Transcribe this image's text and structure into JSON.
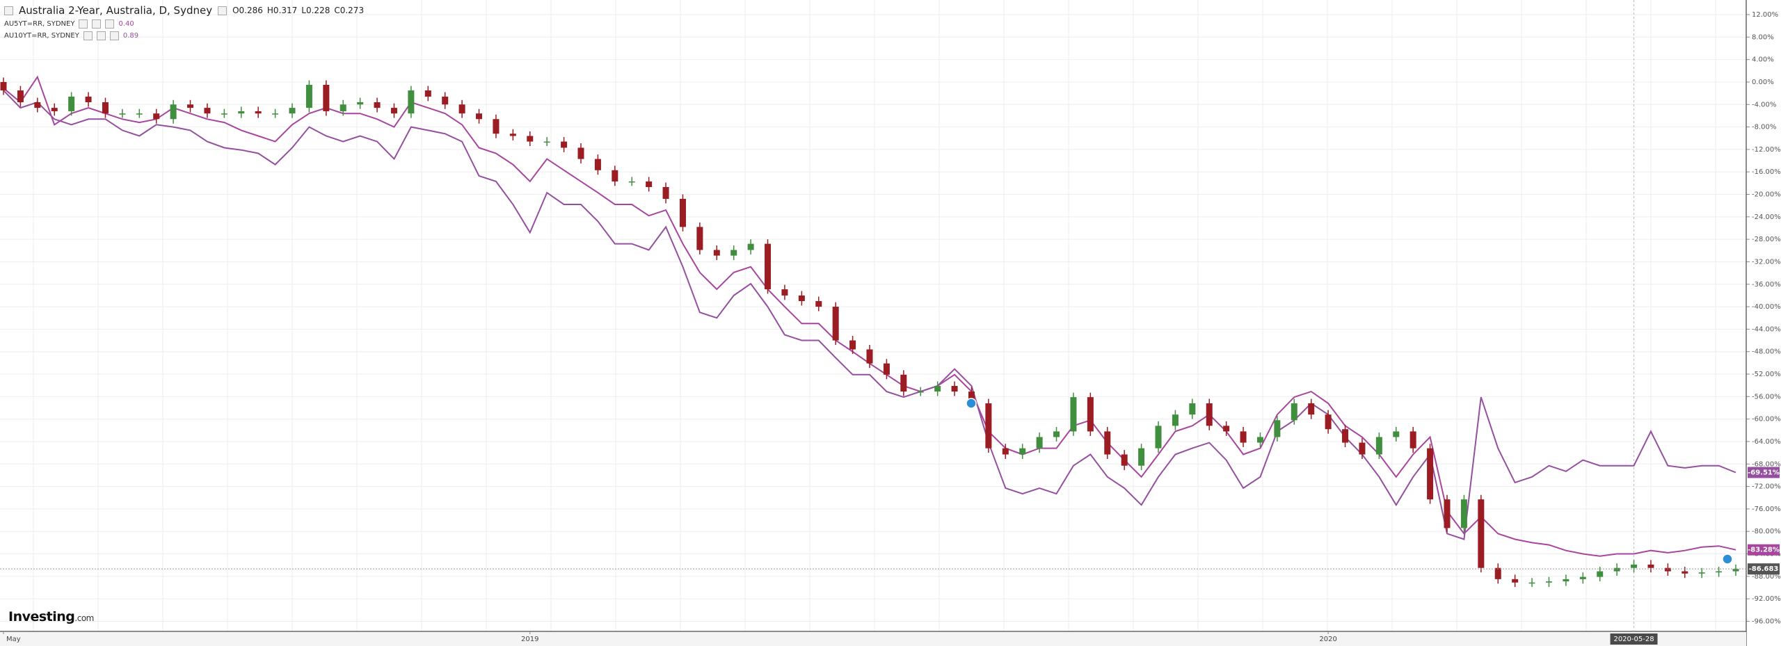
{
  "header": {
    "title": "Australia 2-Year, Australia, D, Sydney",
    "ohlc_labels": [
      "O0.286",
      "H0.317",
      "L0.228",
      "C0.273"
    ]
  },
  "logo": "Investing",
  "logo_suffix": ".com",
  "chart_data": {
    "type": "candlestick",
    "grid": true,
    "y_axis_side": "right",
    "crosshair_index": 96,
    "ylim": [
      -97.8,
      14.6
    ],
    "yticks": [
      {
        "value": 12,
        "label": "12.00%"
      },
      {
        "value": 8,
        "label": "8.00%"
      },
      {
        "value": 4,
        "label": "4.00%"
      },
      {
        "value": 0,
        "label": "0.00%"
      },
      {
        "value": -4,
        "label": "-4.00%"
      },
      {
        "value": -8,
        "label": "-8.00%"
      },
      {
        "value": -12,
        "label": "-12.00%"
      },
      {
        "value": -16,
        "label": "-16.00%"
      },
      {
        "value": -20,
        "label": "-20.00%"
      },
      {
        "value": -24,
        "label": "-24.00%"
      },
      {
        "value": -28,
        "label": "-28.00%"
      },
      {
        "value": -32,
        "label": "-32.00%"
      },
      {
        "value": -36,
        "label": "-36.00%"
      },
      {
        "value": -40,
        "label": "-40.00%"
      },
      {
        "value": -44,
        "label": "-44.00%"
      },
      {
        "value": -48,
        "label": "-48.00%"
      },
      {
        "value": -52,
        "label": "-52.00%"
      },
      {
        "value": -56,
        "label": "-56.00%"
      },
      {
        "value": -60,
        "label": "-60.00%"
      },
      {
        "value": -64,
        "label": "-64.00%"
      },
      {
        "value": -68,
        "label": "-68.00%"
      },
      {
        "value": -72,
        "label": "-72.00%"
      },
      {
        "value": -76,
        "label": "-76.00%"
      },
      {
        "value": -80,
        "label": "-80.00%"
      },
      {
        "value": -84,
        "label": "-84.00%"
      },
      {
        "value": -88,
        "label": "-88.00%"
      },
      {
        "value": -92,
        "label": "-92.00%"
      },
      {
        "value": -96,
        "label": "-96.00%"
      }
    ],
    "categories": [
      "May",
      null,
      null,
      null,
      null,
      null,
      null,
      null,
      null,
      null,
      null,
      null,
      null,
      null,
      null,
      null,
      null,
      null,
      null,
      null,
      null,
      null,
      null,
      null,
      null,
      null,
      null,
      null,
      null,
      null,
      null,
      "2019",
      null,
      null,
      null,
      null,
      null,
      null,
      null,
      null,
      null,
      null,
      null,
      null,
      null,
      null,
      null,
      null,
      null,
      null,
      null,
      null,
      null,
      null,
      null,
      null,
      null,
      null,
      null,
      null,
      null,
      null,
      null,
      null,
      null,
      null,
      null,
      null,
      null,
      null,
      null,
      null,
      null,
      null,
      null,
      null,
      null,
      null,
      "2020",
      null,
      null,
      null,
      null,
      null,
      null,
      null,
      null,
      null,
      null,
      null,
      null,
      null,
      null,
      null,
      null,
      null,
      "2020-05-28",
      null,
      null,
      null,
      null,
      null,
      null
    ],
    "candles": {
      "up_color": "#3f8f3f",
      "down_color": "#9b1c22",
      "last_label": "-86.683",
      "open": [
        0,
        -1.5,
        -3.6,
        -4.6,
        -5.2,
        -2.6,
        -3.6,
        -5.6,
        -5.6,
        -5.6,
        -6.6,
        -4.0,
        -4.6,
        -5.6,
        -5.6,
        -5.2,
        -5.6,
        -5.6,
        -4.6,
        -0.5,
        -5.2,
        -4.0,
        -3.6,
        -4.6,
        -5.6,
        -1.5,
        -2.6,
        -4.0,
        -5.6,
        -6.6,
        -9.2,
        -9.6,
        -10.6,
        -10.6,
        -11.7,
        -13.7,
        -15.7,
        -17.7,
        -17.7,
        -18.7,
        -20.8,
        -25.8,
        -29.9,
        -30.9,
        -29.9,
        -28.8,
        -36.9,
        -38.0,
        -39.0,
        -40.0,
        -46.0,
        -47.6,
        -50.1,
        -52.1,
        -55.1,
        -55.1,
        -54.1,
        -55.1,
        -57.2,
        -65.2,
        -66.3,
        -65.2,
        -63.2,
        -62.2,
        -56.1,
        -62.2,
        -66.3,
        -68.3,
        -65.2,
        -61.2,
        -59.2,
        -57.2,
        -61.2,
        -62.2,
        -64.2,
        -63.2,
        -60.2,
        -57.2,
        -59.2,
        -61.8,
        -64.2,
        -66.3,
        -63.2,
        -62.2,
        -65.2,
        -74.3,
        -79.4,
        -74.3,
        -86.5,
        -88.5,
        -89.1,
        -89.1,
        -88.9,
        -88.5,
        -88.1,
        -87.1,
        -86.5,
        -85.9,
        -86.5,
        -87.1,
        -87.5,
        -87.3,
        -87.1
      ],
      "high": [
        0.8,
        -0.7,
        -2.8,
        -3.8,
        -1.8,
        -1.8,
        -2.8,
        -4.8,
        -4.8,
        -4.8,
        -3.2,
        -3.2,
        -3.8,
        -4.8,
        -4.4,
        -4.4,
        -4.8,
        -3.8,
        0.3,
        0.3,
        -3.2,
        -2.8,
        -2.8,
        -3.8,
        -0.7,
        -0.7,
        -1.8,
        -3.2,
        -4.8,
        -5.8,
        -8.4,
        -8.8,
        -9.8,
        -9.8,
        -10.9,
        -12.9,
        -14.9,
        -16.9,
        -16.9,
        -17.9,
        -20.0,
        -25.0,
        -29.1,
        -29.1,
        -28.0,
        -28.0,
        -36.1,
        -37.2,
        -38.2,
        -39.2,
        -45.2,
        -46.8,
        -49.3,
        -51.3,
        -54.3,
        -53.3,
        -53.3,
        -54.3,
        -56.4,
        -64.4,
        -64.4,
        -62.4,
        -61.4,
        -55.3,
        -55.3,
        -61.4,
        -65.5,
        -64.4,
        -60.4,
        -58.4,
        -56.4,
        -56.4,
        -60.4,
        -61.4,
        -62.4,
        -59.4,
        -56.4,
        -56.4,
        -58.4,
        -61.0,
        -63.4,
        -62.4,
        -61.4,
        -61.4,
        -64.4,
        -73.5,
        -73.5,
        -73.5,
        -85.7,
        -87.7,
        -88.3,
        -88.1,
        -87.7,
        -87.3,
        -86.3,
        -85.7,
        -85.1,
        -85.1,
        -85.7,
        -86.3,
        -86.5,
        -86.3,
        -85.9
      ],
      "low": [
        -2.3,
        -4.4,
        -5.4,
        -6.0,
        -6.0,
        -4.4,
        -6.4,
        -6.4,
        -6.4,
        -7.4,
        -7.4,
        -5.4,
        -6.4,
        -6.4,
        -6.4,
        -6.4,
        -6.4,
        -6.4,
        -5.4,
        -6.0,
        -6.0,
        -4.8,
        -5.4,
        -6.4,
        -6.4,
        -3.4,
        -4.8,
        -6.4,
        -7.4,
        -10.0,
        -10.4,
        -11.4,
        -11.4,
        -12.5,
        -14.5,
        -16.5,
        -18.5,
        -18.5,
        -19.5,
        -21.6,
        -26.6,
        -30.7,
        -31.7,
        -31.7,
        -30.7,
        -37.7,
        -38.8,
        -39.8,
        -40.8,
        -46.8,
        -48.4,
        -50.9,
        -52.9,
        -55.9,
        -55.9,
        -55.9,
        -55.9,
        -58.0,
        -66.0,
        -67.1,
        -67.1,
        -66.0,
        -64.0,
        -63.0,
        -63.0,
        -67.1,
        -69.1,
        -69.1,
        -66.0,
        -62.0,
        -60.0,
        -62.0,
        -63.0,
        -65.0,
        -65.0,
        -64.0,
        -61.0,
        -60.0,
        -62.6,
        -65.0,
        -67.1,
        -67.1,
        -64.0,
        -66.0,
        -75.1,
        -80.2,
        -80.2,
        -87.3,
        -89.3,
        -89.9,
        -89.9,
        -89.9,
        -89.7,
        -89.3,
        -88.9,
        -87.9,
        -87.3,
        -87.3,
        -87.9,
        -88.3,
        -88.3,
        -88.1,
        -87.9
      ],
      "close": [
        -1.5,
        -3.6,
        -4.6,
        -5.2,
        -2.6,
        -3.6,
        -5.6,
        -5.6,
        -5.6,
        -6.6,
        -4.0,
        -4.6,
        -5.6,
        -5.6,
        -5.2,
        -5.6,
        -5.6,
        -4.6,
        -0.5,
        -5.2,
        -4.0,
        -3.6,
        -4.6,
        -5.6,
        -1.5,
        -2.6,
        -4.0,
        -5.6,
        -6.6,
        -9.2,
        -9.6,
        -10.6,
        -10.6,
        -11.7,
        -13.7,
        -15.7,
        -17.7,
        -17.7,
        -18.7,
        -20.8,
        -25.8,
        -29.9,
        -30.9,
        -29.9,
        -28.8,
        -36.9,
        -38.0,
        -39.0,
        -40.0,
        -46.0,
        -47.6,
        -50.1,
        -52.1,
        -55.1,
        -55.1,
        -54.1,
        -55.1,
        -57.2,
        -65.2,
        -66.3,
        -65.2,
        -63.2,
        -62.2,
        -56.1,
        -62.2,
        -66.3,
        -68.3,
        -65.2,
        -61.2,
        -59.2,
        -57.2,
        -61.2,
        -62.2,
        -64.2,
        -63.2,
        -60.2,
        -57.2,
        -59.2,
        -61.8,
        -64.2,
        -66.3,
        -63.2,
        -62.2,
        -65.2,
        -74.3,
        -79.4,
        -74.3,
        -86.5,
        -88.5,
        -89.1,
        -89.1,
        -88.9,
        -88.5,
        -88.1,
        -87.1,
        -86.5,
        -85.9,
        -86.5,
        -87.1,
        -87.5,
        -87.3,
        -87.1,
        -86.68
      ]
    },
    "series": [
      {
        "name": "AU5YT=RR, SYDNEY",
        "legend_value": "0.40",
        "color": "#a8459e",
        "last_label": "-83.28%",
        "values": [
          -1.1,
          -3.6,
          0.9,
          -7.6,
          -5.6,
          -4.6,
          -5.6,
          -6.6,
          -7.2,
          -6.6,
          -4.6,
          -5.6,
          -6.6,
          -7.2,
          -8.6,
          -9.6,
          -10.6,
          -7.6,
          -5.6,
          -4.6,
          -5.6,
          -5.6,
          -6.6,
          -8.0,
          -3.6,
          -4.6,
          -5.6,
          -7.6,
          -11.7,
          -12.7,
          -14.7,
          -17.7,
          -13.7,
          -15.7,
          -17.7,
          -19.7,
          -21.8,
          -21.8,
          -23.8,
          -22.8,
          -28.8,
          -33.9,
          -36.9,
          -33.9,
          -32.9,
          -36.9,
          -40.0,
          -43.0,
          -43.0,
          -46.0,
          -48.0,
          -50.1,
          -52.1,
          -54.1,
          -55.1,
          -54.1,
          -52.1,
          -55.1,
          -62.2,
          -65.2,
          -66.3,
          -65.2,
          -65.2,
          -61.2,
          -60.2,
          -64.2,
          -67.3,
          -70.3,
          -66.3,
          -62.2,
          -61.2,
          -59.2,
          -62.2,
          -66.3,
          -65.2,
          -59.2,
          -56.1,
          -55.1,
          -57.2,
          -61.2,
          -63.2,
          -66.3,
          -70.3,
          -66.3,
          -63.2,
          -76.4,
          -80.4,
          -77.4,
          -80.4,
          -81.4,
          -82.0,
          -82.4,
          -83.4,
          -84.0,
          -84.4,
          -84.0,
          -84.0,
          -83.4,
          -83.8,
          -83.4,
          -82.8,
          -82.6,
          -83.28
        ]
      },
      {
        "name": "AU10YT=RR, SYDNEY",
        "legend_value": "0.89",
        "color": "#94509f",
        "last_label": "-69.51%",
        "values": [
          -1.5,
          -4.6,
          -3.6,
          -6.6,
          -7.6,
          -6.6,
          -6.6,
          -8.6,
          -9.6,
          -7.6,
          -8.0,
          -8.6,
          -10.6,
          -11.7,
          -12.1,
          -12.7,
          -14.7,
          -11.7,
          -8.0,
          -9.6,
          -10.6,
          -9.6,
          -10.6,
          -13.7,
          -8.0,
          -8.6,
          -9.2,
          -10.6,
          -16.7,
          -17.7,
          -21.8,
          -26.8,
          -19.7,
          -21.8,
          -21.8,
          -24.8,
          -28.8,
          -28.8,
          -29.9,
          -25.8,
          -32.9,
          -41.0,
          -42.0,
          -38.0,
          -35.9,
          -40.0,
          -45.0,
          -46.0,
          -46.0,
          -49.1,
          -52.1,
          -52.1,
          -55.1,
          -56.1,
          -55.1,
          -54.1,
          -51.1,
          -54.1,
          -64.2,
          -72.3,
          -73.3,
          -72.3,
          -73.3,
          -68.3,
          -66.3,
          -70.3,
          -72.3,
          -75.3,
          -70.3,
          -66.3,
          -65.2,
          -64.2,
          -67.3,
          -72.3,
          -70.3,
          -62.2,
          -60.2,
          -57.2,
          -59.2,
          -63.2,
          -66.3,
          -70.3,
          -75.3,
          -70.3,
          -66.3,
          -80.4,
          -81.4,
          -56.1,
          -65.2,
          -71.3,
          -70.3,
          -68.3,
          -69.3,
          -67.3,
          -68.3,
          -68.3,
          -68.3,
          -62.2,
          -68.3,
          -68.7,
          -68.3,
          -68.3,
          -69.51
        ]
      }
    ]
  }
}
